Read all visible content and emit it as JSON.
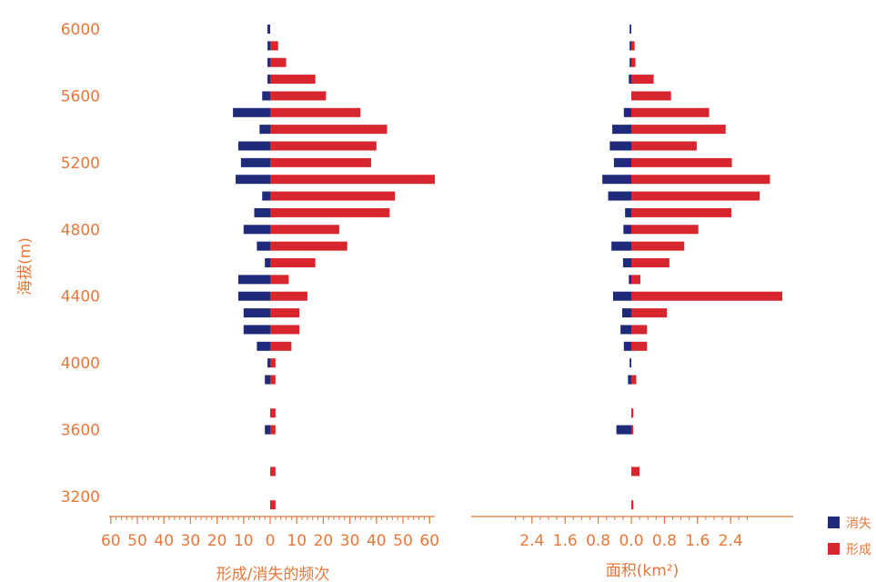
{
  "colors": {
    "label": "#E8773A",
    "disappear": "#1F2A7A",
    "form": "#D7262E",
    "axis": "#E8773A"
  },
  "chart_data": {
    "type": "bar",
    "orientation": "horizontal-diverging",
    "ylabel": "海拔(m)",
    "ylim": [
      3150,
      6050
    ],
    "y_ticks": [
      {
        "value": 3200,
        "label": "3200"
      },
      {
        "value": 3600,
        "label": "3600"
      },
      {
        "value": 4000,
        "label": "4000"
      },
      {
        "value": 4400,
        "label": "4400"
      },
      {
        "value": 4800,
        "label": "4800"
      },
      {
        "value": 5200,
        "label": "5200"
      },
      {
        "value": 5600,
        "label": "5600"
      },
      {
        "value": 6000,
        "label": "6000"
      }
    ],
    "legend": {
      "position": "bottom-right",
      "items": [
        {
          "name": "消失",
          "color": "#1F2A7A"
        },
        {
          "name": "形成",
          "color": "#D7262E"
        }
      ]
    },
    "elevations": [
      3150,
      3350,
      3600,
      3700,
      3900,
      4000,
      4100,
      4200,
      4300,
      4400,
      4500,
      4600,
      4700,
      4800,
      4900,
      5000,
      5100,
      5200,
      5300,
      5400,
      5500,
      5600,
      5700,
      5800,
      5900,
      6000
    ],
    "panels": [
      {
        "xlabel": "形成/消失的频次",
        "xlim": [
          -60,
          60
        ],
        "x_ticks": [
          {
            "value": -60,
            "label": "60"
          },
          {
            "value": -50,
            "label": "50"
          },
          {
            "value": -40,
            "label": "40"
          },
          {
            "value": -30,
            "label": "30"
          },
          {
            "value": -20,
            "label": "20"
          },
          {
            "value": -10,
            "label": "10"
          },
          {
            "value": 0,
            "label": "0"
          },
          {
            "value": 10,
            "label": "10"
          },
          {
            "value": 20,
            "label": "20"
          },
          {
            "value": 30,
            "label": "30"
          },
          {
            "value": 40,
            "label": "40"
          },
          {
            "value": 50,
            "label": "50"
          },
          {
            "value": 60,
            "label": "60"
          }
        ],
        "series": [
          {
            "name": "消失",
            "values": [
              0,
              0,
              2,
              0,
              2,
              1,
              5,
              10,
              10,
              12,
              12,
              2,
              5,
              10,
              6,
              3,
              13,
              11,
              12,
              4,
              14,
              3,
              1,
              1,
              1,
              1
            ]
          },
          {
            "name": "形成",
            "values": [
              2,
              2,
              2,
              2,
              2,
              2,
              8,
              11,
              11,
              14,
              7,
              17,
              29,
              26,
              45,
              47,
              62,
              38,
              40,
              44,
              34,
              21,
              17,
              6,
              3,
              0
            ]
          }
        ]
      },
      {
        "xlabel": "面积(km²)",
        "xlim": [
          -2.9,
          2.9
        ],
        "x_ticks": [
          {
            "value": -2.4,
            "label": "2.4"
          },
          {
            "value": -1.6,
            "label": "1.6"
          },
          {
            "value": -0.8,
            "label": "0.8"
          },
          {
            "value": 0,
            "label": "0.0"
          },
          {
            "value": 0.8,
            "label": "0.8"
          },
          {
            "value": 1.6,
            "label": "1.6"
          },
          {
            "value": 2.4,
            "label": "2.4"
          }
        ],
        "series": [
          {
            "name": "消失",
            "values": [
              0,
              0,
              0.36,
              0,
              0.08,
              0.04,
              0.18,
              0.26,
              0.22,
              0.44,
              0.06,
              0.2,
              0.48,
              0.19,
              0.15,
              0.56,
              0.7,
              0.42,
              0.52,
              0.46,
              0.18,
              0,
              0.06,
              0.04,
              0.04,
              0.04
            ]
          },
          {
            "name": "形成",
            "values": [
              0.05,
              0.2,
              0.05,
              0.05,
              0.12,
              0,
              0.38,
              0.38,
              0.86,
              3.65,
              0.22,
              0.92,
              1.28,
              1.62,
              2.42,
              3.1,
              3.35,
              2.43,
              1.58,
              2.28,
              1.88,
              0.96,
              0.54,
              0.1,
              0.08,
              0
            ]
          }
        ]
      }
    ]
  }
}
